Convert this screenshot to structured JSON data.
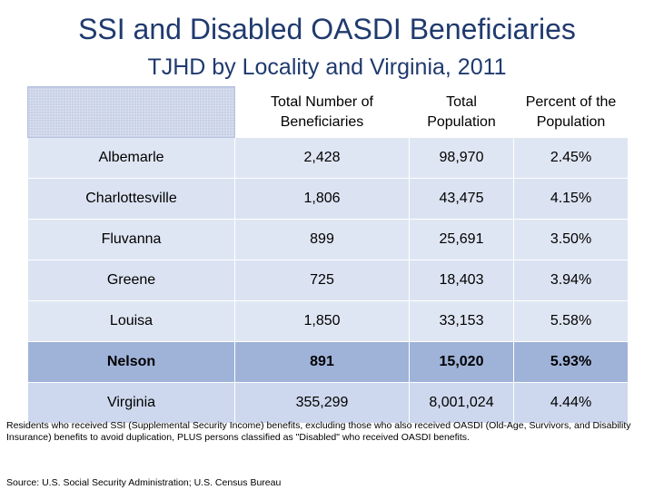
{
  "title": "SSI and Disabled OASDI Beneficiaries",
  "subtitle": "TJHD by Locality and Virginia, 2011",
  "table": {
    "headers": [
      "",
      "Total Number of Beneficiaries",
      "Total Population",
      "Percent of the Population"
    ],
    "rows": [
      {
        "locality": "Albemarle",
        "beneficiaries": "2,428",
        "population": "98,970",
        "percent": "2.45%"
      },
      {
        "locality": "Charlottesville",
        "beneficiaries": "1,806",
        "population": "43,475",
        "percent": "4.15%"
      },
      {
        "locality": "Fluvanna",
        "beneficiaries": "899",
        "population": "25,691",
        "percent": "3.50%"
      },
      {
        "locality": "Greene",
        "beneficiaries": "725",
        "population": "18,403",
        "percent": "3.94%"
      },
      {
        "locality": "Louisa",
        "beneficiaries": "1,850",
        "population": "33,153",
        "percent": "5.58%"
      },
      {
        "locality": "Nelson",
        "beneficiaries": "891",
        "population": "15,020",
        "percent": "5.93%"
      },
      {
        "locality": "Virginia",
        "beneficiaries": "355,299",
        "population": "8,001,024",
        "percent": "4.44%"
      }
    ]
  },
  "footnote": "Residents who received SSI (Supplemental Security Income) benefits, excluding those who also received OASDI (Old-Age, Survivors, and Disability Insurance) benefits to avoid duplication, PLUS persons classified as \"Disabled\" who received OASDI benefits.",
  "source": "Source:  U.S. Social Security Administration; U.S. Census Bureau",
  "colors": {
    "title": "#1f3a6e",
    "row_fill": "#dfe6f3",
    "highlight_fill": "#9fb3d9",
    "virginia_fill": "#cdd8ee"
  }
}
